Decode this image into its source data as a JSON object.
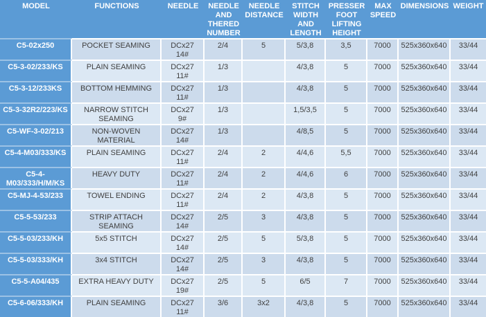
{
  "colors": {
    "header_bg": "#5b9bd5",
    "header_text": "#ffffff",
    "row_odd_bg": "#ccdbec",
    "row_even_bg": "#dce8f4",
    "model_divider": "#9cc2e5",
    "cell_text": "#404040"
  },
  "table": {
    "columns": [
      {
        "label": "MODEL"
      },
      {
        "label": "FUNCTIONS"
      },
      {
        "label": "NEEDLE"
      },
      {
        "label": "NEEDLE AND THERED NUMBER"
      },
      {
        "label": "NEEDLE DISTANCE"
      },
      {
        "label": "STITCH WIDTH AND LENGTH"
      },
      {
        "label": "PRESSER FOOT LIFTING HEIGHT"
      },
      {
        "label": "MAX SPEED"
      },
      {
        "label": "DIMENSIONS"
      },
      {
        "label": "WEIGHT"
      }
    ],
    "rows": [
      {
        "model": "C5-02x250",
        "functions": "POCKET SEAMING",
        "needle": "DCx27\n14#",
        "thread_number": "2/4",
        "distance": "5",
        "stitch": "5/3,8",
        "presser": "3,5",
        "speed": "7000",
        "dimensions": "525x360x640",
        "weight": "33/44"
      },
      {
        "model": "C5-3-02/233/KS",
        "functions": "PLAIN SEAMING",
        "needle": "DCx27\n11#",
        "thread_number": "1/3",
        "distance": "",
        "stitch": "4/3,8",
        "presser": "5",
        "speed": "7000",
        "dimensions": "525x360x640",
        "weight": "33/44"
      },
      {
        "model": "C5-3-12/233KS",
        "functions": "BOTTOM HEMMING",
        "needle": "DCx27\n11#",
        "thread_number": "1/3",
        "distance": "",
        "stitch": "4/3,8",
        "presser": "5",
        "speed": "7000",
        "dimensions": "525x360x640",
        "weight": "33/44"
      },
      {
        "model": "C5-3-32R2/223/KS",
        "functions": "NARROW STITCH SEAMING",
        "needle": "DCx27\n9#",
        "thread_number": "1/3",
        "distance": "",
        "stitch": "1,5/3,5",
        "presser": "5",
        "speed": "7000",
        "dimensions": "525x360x640",
        "weight": "33/44"
      },
      {
        "model": "C5-WF-3-02/213",
        "functions": "NON-WOVEN MATERIAL",
        "needle": "DCx27\n14#",
        "thread_number": "1/3",
        "distance": "",
        "stitch": "4/8,5",
        "presser": "5",
        "speed": "7000",
        "dimensions": "525x360x640",
        "weight": "33/44"
      },
      {
        "model": "C5-4-M03/333/KS",
        "functions": "PLAIN SEAMING",
        "needle": "DCx27\n11#",
        "thread_number": "2/4",
        "distance": "2",
        "stitch": "4/4,6",
        "presser": "5,5",
        "speed": "7000",
        "dimensions": "525x360x640",
        "weight": "33/44"
      },
      {
        "model": "C5-4-\nM03/333/H/M/KS",
        "functions": "HEAVY DUTY",
        "needle": "DCx27\n11#",
        "thread_number": "2/4",
        "distance": "2",
        "stitch": "4/4,6",
        "presser": "6",
        "speed": "7000",
        "dimensions": "525x360x640",
        "weight": "33/44"
      },
      {
        "model": "C5-MJ-4-53/233",
        "functions": "TOWEL ENDING",
        "needle": "DCx27\n11#",
        "thread_number": "2/4",
        "distance": "2",
        "stitch": "4/3,8",
        "presser": "5",
        "speed": "7000",
        "dimensions": "525x360x640",
        "weight": "33/44"
      },
      {
        "model": "C5-5-53/233",
        "functions": "STRIP ATTACH SEAMING",
        "needle": "DCx27\n14#",
        "thread_number": "2/5",
        "distance": "3",
        "stitch": "4/3,8",
        "presser": "5",
        "speed": "7000",
        "dimensions": "525x360x640",
        "weight": "33/44"
      },
      {
        "model": "C5-5-03/233/KH",
        "functions": "5x5 STITCH",
        "needle": "DCx27\n14#",
        "thread_number": "2/5",
        "distance": "5",
        "stitch": "5/3,8",
        "presser": "5",
        "speed": "7000",
        "dimensions": "525x360x640",
        "weight": "33/44"
      },
      {
        "model": "C5-5-03/333/KH",
        "functions": "3x4 STITCH",
        "needle": "DCx27\n14#",
        "thread_number": "2/5",
        "distance": "3",
        "stitch": "4/3,8",
        "presser": "5",
        "speed": "7000",
        "dimensions": "525x360x640",
        "weight": "33/44"
      },
      {
        "model": "C5-5-A04/435",
        "functions": "EXTRA HEAVY DUTY",
        "needle": "DCx27\n19#",
        "thread_number": "2/5",
        "distance": "5",
        "stitch": "6/5",
        "presser": "7",
        "speed": "7000",
        "dimensions": "525x360x640",
        "weight": "33/44"
      },
      {
        "model": "C5-6-06/333/KH",
        "functions": "PLAIN SEAMING",
        "needle": "DCx27\n11#",
        "thread_number": "3/6",
        "distance": "3x2",
        "stitch": "4/3,8",
        "presser": "5",
        "speed": "7000",
        "dimensions": "525x360x640",
        "weight": "33/44"
      }
    ]
  }
}
